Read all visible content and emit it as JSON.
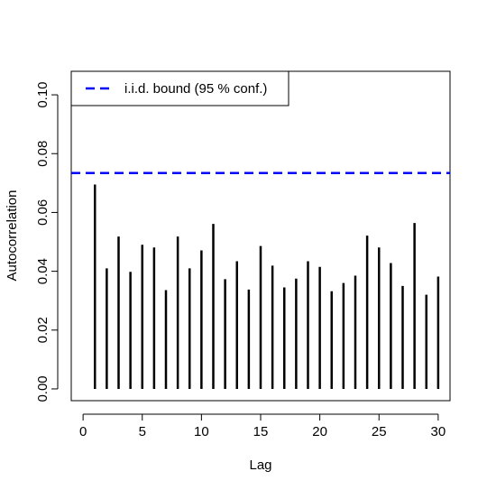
{
  "chart_data": {
    "type": "bar",
    "xlabel": "Lag",
    "ylabel": "Autocorrelation",
    "xlim": [
      -1,
      31
    ],
    "ylim": [
      -0.004,
      0.108
    ],
    "xticks": [
      0,
      5,
      10,
      15,
      20,
      25,
      30
    ],
    "yticks": [
      0.0,
      0.02,
      0.04,
      0.06,
      0.08,
      0.1
    ],
    "ytick_labels": [
      "0.00",
      "0.02",
      "0.04",
      "0.06",
      "0.08",
      "0.10"
    ],
    "xtick_labels": [
      "0",
      "5",
      "10",
      "15",
      "20",
      "25",
      "30"
    ],
    "x": [
      1,
      2,
      3,
      4,
      5,
      6,
      7,
      8,
      9,
      10,
      11,
      12,
      13,
      14,
      15,
      16,
      17,
      18,
      19,
      20,
      21,
      22,
      23,
      24,
      25,
      26,
      27,
      28,
      29,
      30
    ],
    "values": [
      0.0695,
      0.041,
      0.0518,
      0.0398,
      0.049,
      0.0481,
      0.0336,
      0.0518,
      0.041,
      0.0471,
      0.0561,
      0.0373,
      0.0434,
      0.0338,
      0.0486,
      0.0419,
      0.0345,
      0.0375,
      0.0434,
      0.0415,
      0.0332,
      0.036,
      0.0385,
      0.0521,
      0.0481,
      0.0428,
      0.035,
      0.0564,
      0.032,
      0.0382
    ],
    "bound": 0.0734,
    "bound_color": "#0000ff",
    "bar_color": "#000000",
    "legend": {
      "label": "i.i.d. bound (95 % conf.)",
      "placement": "top-left"
    }
  }
}
